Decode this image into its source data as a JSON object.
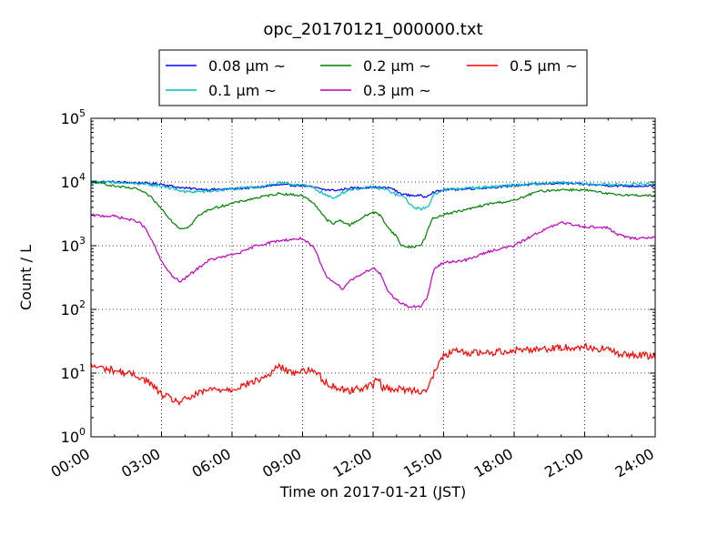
{
  "chart_data": {
    "type": "line",
    "title": "opc_20170121_000000.txt",
    "xlabel": "Time on 2017-01-21 (JST)",
    "ylabel": "Count / L",
    "x_unit": "hours",
    "xlim": [
      0,
      24
    ],
    "ylim": [
      1,
      100000
    ],
    "yscale": "log",
    "grid": true,
    "legend_position": "top-center",
    "x_ticks": [
      {
        "value": 0,
        "label": "00:00"
      },
      {
        "value": 3,
        "label": "03:00"
      },
      {
        "value": 6,
        "label": "06:00"
      },
      {
        "value": 9,
        "label": "09:00"
      },
      {
        "value": 12,
        "label": "12:00"
      },
      {
        "value": 15,
        "label": "15:00"
      },
      {
        "value": 18,
        "label": "18:00"
      },
      {
        "value": 21,
        "label": "21:00"
      },
      {
        "value": 24,
        "label": "24:00"
      }
    ],
    "y_ticks": [
      {
        "value": 1,
        "base": "10",
        "exp": "0"
      },
      {
        "value": 10,
        "base": "10",
        "exp": "1"
      },
      {
        "value": 100,
        "base": "10",
        "exp": "2"
      },
      {
        "value": 1000,
        "base": "10",
        "exp": "3"
      },
      {
        "value": 10000,
        "base": "10",
        "exp": "4"
      },
      {
        "value": 100000,
        "base": "10",
        "exp": "5"
      }
    ],
    "series": [
      {
        "name": "0.08 μm ~",
        "color": "#0000ff",
        "points": [
          [
            0,
            10200
          ],
          [
            1,
            10000
          ],
          [
            2,
            9700
          ],
          [
            3,
            9300
          ],
          [
            3.5,
            8500
          ],
          [
            4,
            8000
          ],
          [
            4.5,
            7800
          ],
          [
            5,
            7600
          ],
          [
            6,
            7800
          ],
          [
            7,
            8200
          ],
          [
            8,
            9000
          ],
          [
            9,
            8800
          ],
          [
            9.5,
            8200
          ],
          [
            10,
            7500
          ],
          [
            10.5,
            7400
          ],
          [
            11,
            8000
          ],
          [
            12,
            8300
          ],
          [
            12.8,
            8000
          ],
          [
            13.1,
            6700
          ],
          [
            13.5,
            6200
          ],
          [
            14,
            6100
          ],
          [
            14.2,
            5800
          ],
          [
            14.5,
            6800
          ],
          [
            15,
            7500
          ],
          [
            16,
            7800
          ],
          [
            17,
            8200
          ],
          [
            18,
            8800
          ],
          [
            19,
            9300
          ],
          [
            20,
            9600
          ],
          [
            21,
            9200
          ],
          [
            22,
            8800
          ],
          [
            23,
            8600
          ],
          [
            24,
            8800
          ]
        ]
      },
      {
        "name": "0.1 μm ~",
        "color": "#00bfbf",
        "points": [
          [
            0,
            10000
          ],
          [
            1,
            9700
          ],
          [
            2,
            9400
          ],
          [
            3,
            8700
          ],
          [
            3.5,
            7800
          ],
          [
            4,
            7000
          ],
          [
            5,
            7100
          ],
          [
            6,
            7700
          ],
          [
            7,
            8300
          ],
          [
            8,
            9600
          ],
          [
            9,
            9000
          ],
          [
            9.5,
            8000
          ],
          [
            10,
            6200
          ],
          [
            10.3,
            5500
          ],
          [
            10.6,
            6500
          ],
          [
            11,
            7600
          ],
          [
            12,
            8300
          ],
          [
            12.6,
            7500
          ],
          [
            13,
            6300
          ],
          [
            13.4,
            5600
          ],
          [
            13.6,
            4200
          ],
          [
            14,
            3800
          ],
          [
            14.3,
            3900
          ],
          [
            14.6,
            6500
          ],
          [
            15,
            7600
          ],
          [
            16,
            8000
          ],
          [
            17,
            8400
          ],
          [
            18,
            8900
          ],
          [
            19,
            9300
          ],
          [
            20,
            9700
          ],
          [
            21,
            9300
          ],
          [
            22,
            9100
          ],
          [
            23,
            9200
          ],
          [
            24,
            9400
          ]
        ]
      },
      {
        "name": "0.2 μm ~",
        "color": "#008000",
        "points": [
          [
            0,
            10000
          ],
          [
            0.5,
            9500
          ],
          [
            1,
            8600
          ],
          [
            2,
            7700
          ],
          [
            2.5,
            6000
          ],
          [
            3,
            3800
          ],
          [
            3.5,
            2300
          ],
          [
            3.8,
            1850
          ],
          [
            4.2,
            2000
          ],
          [
            4.5,
            2800
          ],
          [
            5,
            3700
          ],
          [
            6,
            4600
          ],
          [
            7,
            5600
          ],
          [
            8,
            6600
          ],
          [
            9,
            6100
          ],
          [
            9.5,
            4600
          ],
          [
            10,
            2600
          ],
          [
            10.3,
            2200
          ],
          [
            10.6,
            2500
          ],
          [
            11,
            2100
          ],
          [
            11.5,
            2700
          ],
          [
            12,
            3400
          ],
          [
            12.3,
            3000
          ],
          [
            12.7,
            1800
          ],
          [
            13,
            1400
          ],
          [
            13.2,
            1000
          ],
          [
            13.6,
            950
          ],
          [
            14,
            1000
          ],
          [
            14.2,
            1300
          ],
          [
            14.5,
            2600
          ],
          [
            15,
            3100
          ],
          [
            16,
            3700
          ],
          [
            17,
            4600
          ],
          [
            18,
            5100
          ],
          [
            19,
            7100
          ],
          [
            20,
            7600
          ],
          [
            21,
            7500
          ],
          [
            22,
            6500
          ],
          [
            23,
            6200
          ],
          [
            24,
            6100
          ]
        ]
      },
      {
        "name": "0.3 μm ~",
        "color": "#bf00bf",
        "points": [
          [
            0,
            3000
          ],
          [
            1,
            2900
          ],
          [
            2,
            2400
          ],
          [
            2.3,
            1900
          ],
          [
            2.7,
            1000
          ],
          [
            3,
            560
          ],
          [
            3.5,
            320
          ],
          [
            3.8,
            270
          ],
          [
            4.2,
            350
          ],
          [
            5,
            590
          ],
          [
            6,
            720
          ],
          [
            6.5,
            810
          ],
          [
            7,
            1000
          ],
          [
            8,
            1200
          ],
          [
            9,
            1300
          ],
          [
            9.5,
            900
          ],
          [
            10,
            330
          ],
          [
            10.3,
            280
          ],
          [
            10.7,
            210
          ],
          [
            11,
            280
          ],
          [
            11.5,
            360
          ],
          [
            12,
            450
          ],
          [
            12.3,
            360
          ],
          [
            12.6,
            200
          ],
          [
            13,
            140
          ],
          [
            13.5,
            110
          ],
          [
            14,
            110
          ],
          [
            14.3,
            150
          ],
          [
            14.6,
            440
          ],
          [
            15,
            540
          ],
          [
            16,
            600
          ],
          [
            17,
            830
          ],
          [
            18,
            1000
          ],
          [
            19,
            1600
          ],
          [
            20,
            2300
          ],
          [
            21,
            2000
          ],
          [
            22,
            1900
          ],
          [
            22.4,
            1500
          ],
          [
            23,
            1300
          ],
          [
            24,
            1350
          ]
        ]
      },
      {
        "name": "0.5 μm ~",
        "color": "#ff0000",
        "points": [
          [
            0,
            13
          ],
          [
            1,
            11
          ],
          [
            2,
            9
          ],
          [
            2.5,
            7
          ],
          [
            3,
            4.6
          ],
          [
            3.5,
            3.8
          ],
          [
            3.8,
            3.5
          ],
          [
            4.3,
            4.3
          ],
          [
            5,
            5.5
          ],
          [
            6,
            5.6
          ],
          [
            7,
            7.5
          ],
          [
            7.5,
            9
          ],
          [
            8,
            13
          ],
          [
            8.5,
            10
          ],
          [
            9,
            11
          ],
          [
            9.5,
            11
          ],
          [
            10,
            7
          ],
          [
            10.5,
            5.8
          ],
          [
            11,
            5.3
          ],
          [
            12,
            6.5
          ],
          [
            12.2,
            8.5
          ],
          [
            12.4,
            6
          ],
          [
            13,
            5.6
          ],
          [
            14,
            5.3
          ],
          [
            14.3,
            5.5
          ],
          [
            14.6,
            10
          ],
          [
            15,
            19
          ],
          [
            15.5,
            22
          ],
          [
            16,
            21
          ],
          [
            17,
            21
          ],
          [
            18,
            23
          ],
          [
            19,
            24
          ],
          [
            20,
            25
          ],
          [
            21,
            26
          ],
          [
            21.5,
            24
          ],
          [
            22,
            24
          ],
          [
            22.5,
            19
          ],
          [
            23,
            20
          ],
          [
            24,
            18
          ]
        ]
      }
    ]
  }
}
